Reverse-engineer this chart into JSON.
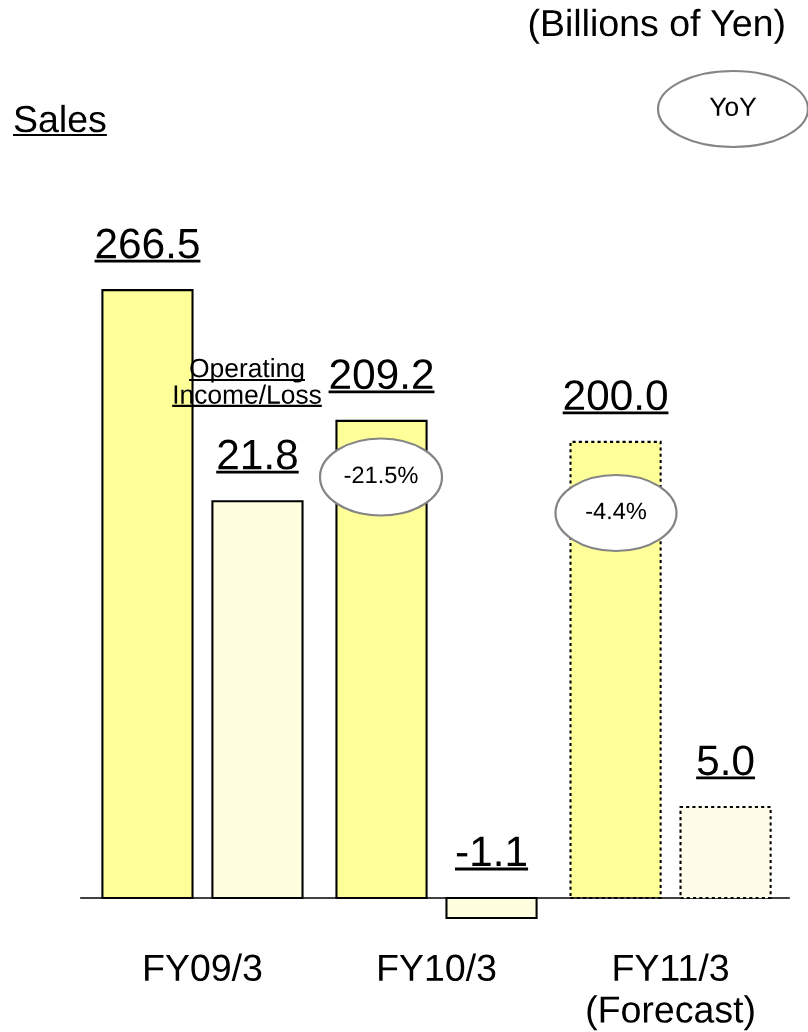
{
  "chart_data": {
    "type": "bar",
    "categories": [
      "FY09/3",
      "FY10/3",
      "FY11/3\n(Forecast)"
    ],
    "series": [
      {
        "color": "#ffff99",
        "values": [
          266.5,
          209.2,
          null
        ],
        "value_labels": [
          "266.5",
          "209.2",
          null
        ]
      },
      {
        "color": "#ffffe0",
        "axis": "y2",
        "values": [
          21.8,
          -1.1,
          null
        ],
        "value_labels": [
          "21.8",
          "-1.1",
          null
        ]
      },
      {
        "color": "#ffff99",
        "values": [
          null,
          null,
          200.0
        ],
        "value_labels": [
          null,
          null,
          "200.0"
        ],
        "line_style": "dotted"
      },
      {
        "color": "#fffde8",
        "axis": "y2",
        "values": [
          null,
          null,
          5.0
        ],
        "value_labels": [
          null,
          null,
          "5.0"
        ],
        "line_style": "dotted"
      }
    ],
    "tick_labels": "x",
    "annotations": [
      "(Billions of Yen)",
      "Sales",
      "YoY",
      "Operating\nIncome/Loss",
      "-21.5%",
      "-4.4%"
    ]
  }
}
